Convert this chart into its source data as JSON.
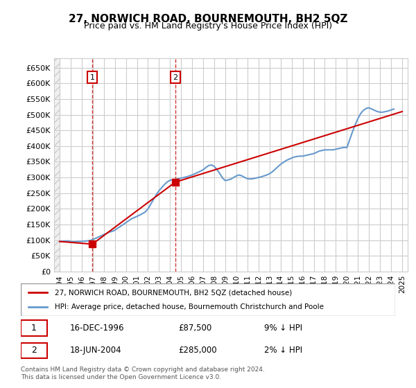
{
  "title": "27, NORWICH ROAD, BOURNEMOUTH, BH2 5QZ",
  "subtitle": "Price paid vs. HM Land Registry's House Price Index (HPI)",
  "ylabel_ticks": [
    "£0",
    "£50K",
    "£100K",
    "£150K",
    "£200K",
    "£250K",
    "£300K",
    "£350K",
    "£400K",
    "£450K",
    "£500K",
    "£550K",
    "£600K",
    "£650K"
  ],
  "ytick_vals": [
    0,
    50000,
    100000,
    150000,
    200000,
    250000,
    300000,
    350000,
    400000,
    450000,
    500000,
    550000,
    600000,
    650000
  ],
  "ylim": [
    0,
    680000
  ],
  "xlim_start": 1993.5,
  "xlim_end": 2025.5,
  "sale_color": "#cc0000",
  "hpi_color": "#6699cc",
  "legend_sale": "27, NORWICH ROAD, BOURNEMOUTH, BH2 5QZ (detached house)",
  "legend_hpi": "HPI: Average price, detached house, Bournemouth Christchurch and Poole",
  "transaction1_label": "1",
  "transaction1_date": "16-DEC-1996",
  "transaction1_price": "£87,500",
  "transaction1_hpi": "9% ↓ HPI",
  "transaction1_x": 1996.96,
  "transaction1_y": 87500,
  "transaction2_label": "2",
  "transaction2_date": "18-JUN-2004",
  "transaction2_price": "£285,000",
  "transaction2_hpi": "2% ↓ HPI",
  "transaction2_x": 2004.46,
  "transaction2_y": 285000,
  "footnote": "Contains HM Land Registry data © Crown copyright and database right 2024.\nThis data is licensed under the Open Government Licence v3.0.",
  "hpi_years": [
    1994,
    1994.25,
    1994.5,
    1994.75,
    1995,
    1995.25,
    1995.5,
    1995.75,
    1996,
    1996.25,
    1996.5,
    1996.75,
    1997,
    1997.25,
    1997.5,
    1997.75,
    1998,
    1998.25,
    1998.5,
    1998.75,
    1999,
    1999.25,
    1999.5,
    1999.75,
    2000,
    2000.25,
    2000.5,
    2000.75,
    2001,
    2001.25,
    2001.5,
    2001.75,
    2002,
    2002.25,
    2002.5,
    2002.75,
    2003,
    2003.25,
    2003.5,
    2003.75,
    2004,
    2004.25,
    2004.5,
    2004.75,
    2005,
    2005.25,
    2005.5,
    2005.75,
    2006,
    2006.25,
    2006.5,
    2006.75,
    2007,
    2007.25,
    2007.5,
    2007.75,
    2008,
    2008.25,
    2008.5,
    2008.75,
    2009,
    2009.25,
    2009.5,
    2009.75,
    2010,
    2010.25,
    2010.5,
    2010.75,
    2011,
    2011.25,
    2011.5,
    2011.75,
    2012,
    2012.25,
    2012.5,
    2012.75,
    2013,
    2013.25,
    2013.5,
    2013.75,
    2014,
    2014.25,
    2014.5,
    2014.75,
    2015,
    2015.25,
    2015.5,
    2015.75,
    2016,
    2016.25,
    2016.5,
    2016.75,
    2017,
    2017.25,
    2017.5,
    2017.75,
    2018,
    2018.25,
    2018.5,
    2018.75,
    2019,
    2019.25,
    2019.5,
    2019.75,
    2020,
    2020.25,
    2020.5,
    2020.75,
    2021,
    2021.25,
    2021.5,
    2021.75,
    2022,
    2022.25,
    2022.5,
    2022.75,
    2023,
    2023.25,
    2023.5,
    2023.75,
    2024,
    2024.25
  ],
  "hpi_values": [
    96000,
    97000,
    97500,
    98000,
    96000,
    95000,
    95500,
    96000,
    96500,
    97000,
    98000,
    99000,
    102000,
    106000,
    110000,
    114000,
    118000,
    122000,
    126000,
    128000,
    132000,
    138000,
    144000,
    150000,
    156000,
    162000,
    168000,
    172000,
    176000,
    180000,
    185000,
    190000,
    200000,
    215000,
    230000,
    245000,
    258000,
    268000,
    278000,
    286000,
    291000,
    293000,
    294000,
    296000,
    298000,
    300000,
    302000,
    305000,
    308000,
    312000,
    316000,
    320000,
    325000,
    332000,
    338000,
    340000,
    335000,
    325000,
    312000,
    298000,
    290000,
    292000,
    295000,
    300000,
    305000,
    308000,
    305000,
    300000,
    296000,
    295000,
    296000,
    298000,
    300000,
    302000,
    305000,
    308000,
    312000,
    318000,
    326000,
    334000,
    342000,
    348000,
    354000,
    358000,
    362000,
    365000,
    367000,
    368000,
    368000,
    370000,
    372000,
    374000,
    376000,
    380000,
    384000,
    386000,
    388000,
    388000,
    388000,
    388000,
    390000,
    392000,
    394000,
    396000,
    395000,
    420000,
    445000,
    468000,
    488000,
    504000,
    514000,
    520000,
    522000,
    518000,
    514000,
    510000,
    508000,
    508000,
    510000,
    512000,
    515000,
    518000
  ],
  "sale_years": [
    1994,
    1996.96,
    2004.46,
    2025
  ],
  "sale_values": [
    96000,
    87500,
    285000,
    510000
  ],
  "xtick_years": [
    1994,
    1995,
    1996,
    1997,
    1998,
    1999,
    2000,
    2001,
    2002,
    2003,
    2004,
    2005,
    2006,
    2007,
    2008,
    2009,
    2010,
    2011,
    2012,
    2013,
    2014,
    2015,
    2016,
    2017,
    2018,
    2019,
    2020,
    2021,
    2022,
    2023,
    2024,
    2025
  ],
  "background_color": "#ffffff",
  "grid_color": "#cccccc",
  "hatch_color": "#dddddd"
}
